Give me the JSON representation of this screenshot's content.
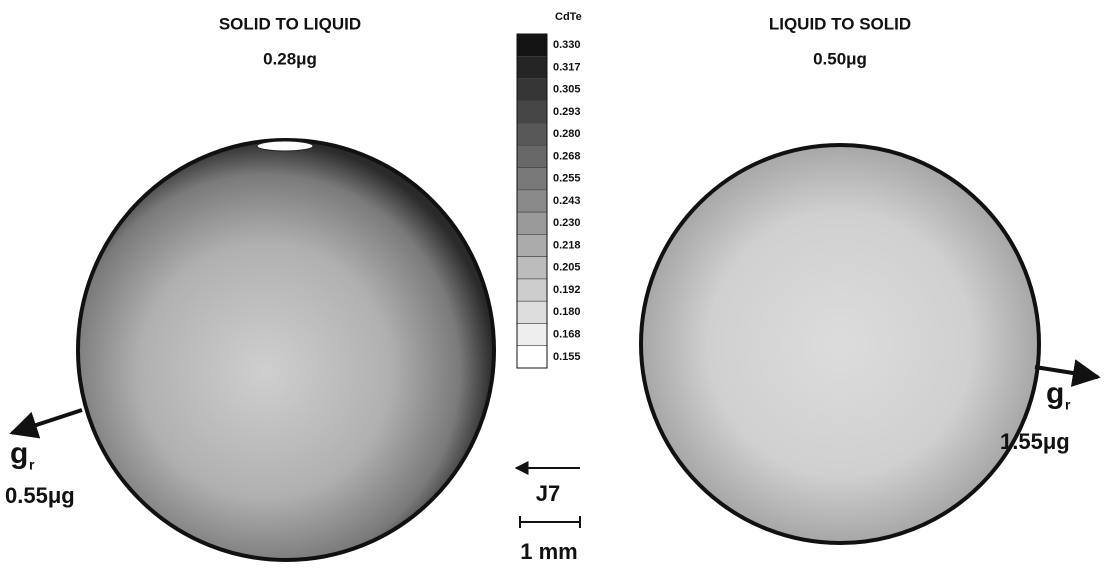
{
  "left_panel": {
    "title": "SOLID TO LIQUID",
    "gravity": "0.28μg",
    "vector_label": "g",
    "vector_subscript": "r",
    "vector_magnitude": "0.55μg"
  },
  "right_panel": {
    "title": "LIQUID TO SOLID",
    "gravity": "0.50μg",
    "vector_label": "g",
    "vector_subscript": "r",
    "vector_magnitude": "1.55μg"
  },
  "colorbar": {
    "title": "CdTe",
    "labels": [
      "0.330",
      "0.317",
      "0.305",
      "0.293",
      "0.280",
      "0.268",
      "0.255",
      "0.243",
      "0.230",
      "0.218",
      "0.205",
      "0.192",
      "0.180",
      "0.168",
      "0.155"
    ]
  },
  "scale": {
    "arrow_label": "J7",
    "bar_label": "1 mm"
  }
}
